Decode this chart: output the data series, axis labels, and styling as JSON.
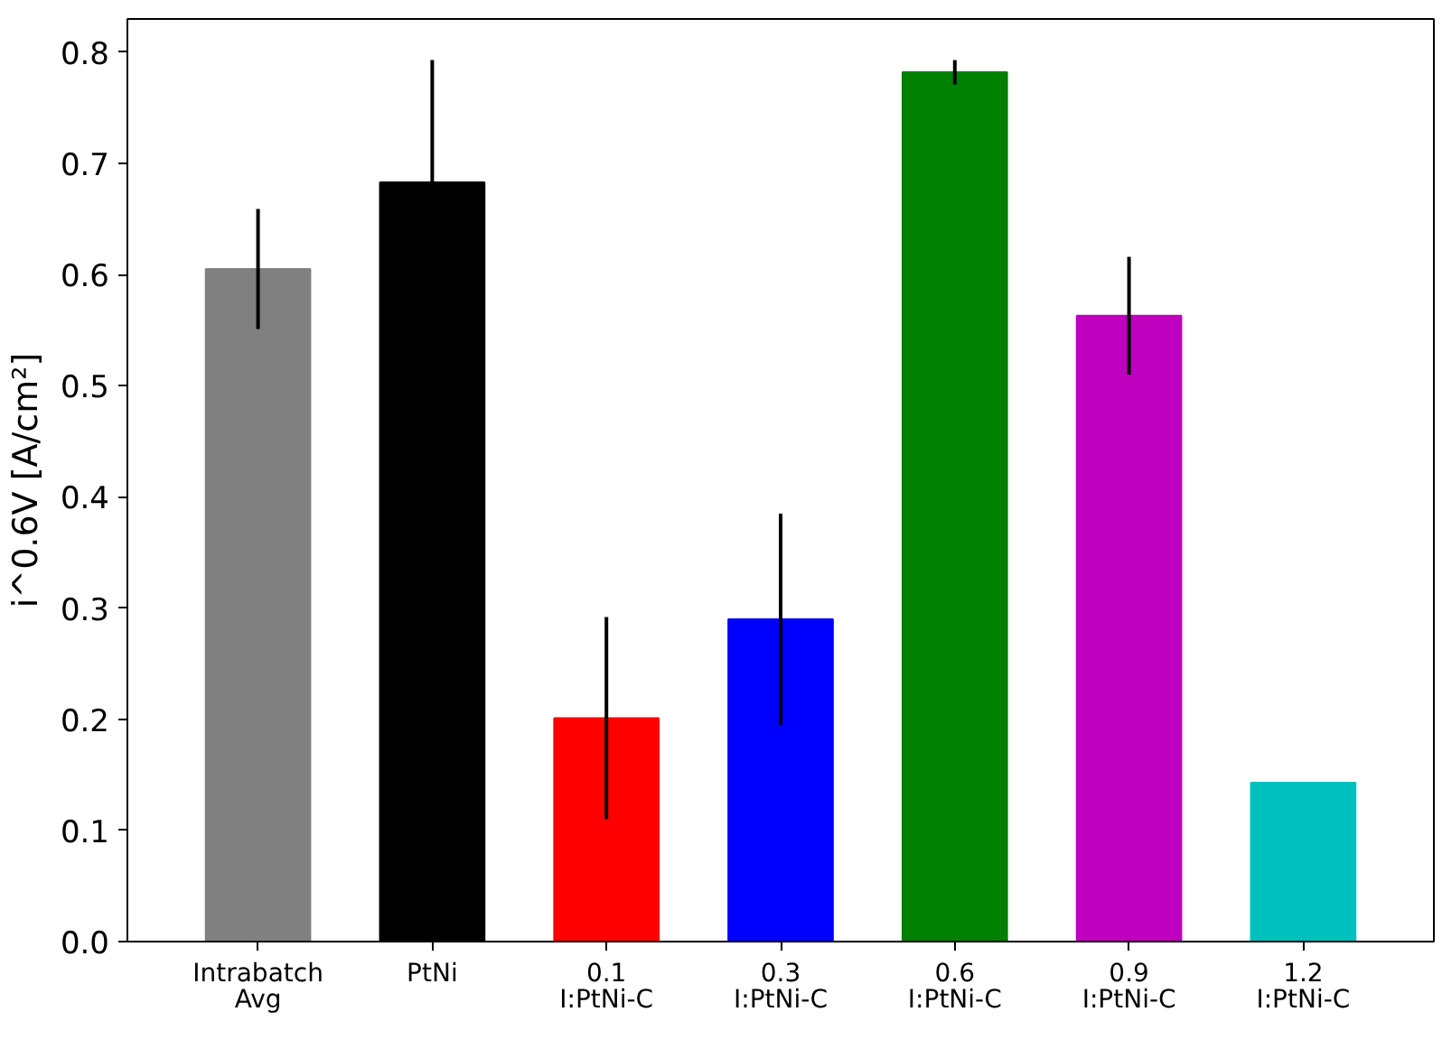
{
  "chart_data": {
    "type": "bar",
    "ylabel": "i^0.6V [A/cm²]",
    "categories": [
      "Intrabatch\nAvg",
      "PtNi",
      "0.1\nI:PtNi-C",
      "0.3\nI:PtNi-C",
      "0.6\nI:PtNi-C",
      "0.9\nI:PtNi-C",
      "1.2\nI:PtNi-C"
    ],
    "values": [
      0.605,
      0.683,
      0.201,
      0.29,
      0.782,
      0.563,
      0.143
    ],
    "errors": [
      0.054,
      0.11,
      0.091,
      0.095,
      0.011,
      0.053,
      null
    ],
    "colors": [
      "#808080",
      "#000000",
      "#ff0000",
      "#0000ff",
      "#008000",
      "#bf00bf",
      "#00bfbf"
    ],
    "ylim": [
      0,
      0.83
    ],
    "yticks": [
      {
        "value": 0,
        "label": "0.0"
      },
      0.1,
      0.2,
      0.3,
      0.4,
      0.5,
      0.6,
      0.7,
      0.8
    ],
    "grid": false
  }
}
